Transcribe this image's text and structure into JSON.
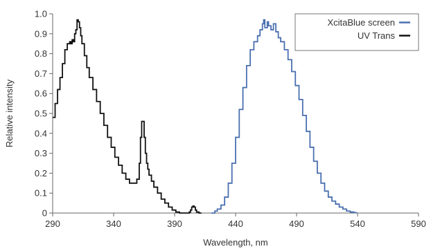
{
  "chart_data": {
    "type": "line",
    "xlabel": "Wavelength, nm",
    "ylabel": "Relative intensity",
    "xlim": [
      290,
      590
    ],
    "ylim": [
      0,
      1.0
    ],
    "xticks": [
      290,
      340,
      390,
      440,
      490,
      540,
      590
    ],
    "yticks": [
      0,
      0.1,
      0.2,
      0.3,
      0.4,
      0.5,
      0.6,
      0.7,
      0.8,
      0.9,
      1.0
    ],
    "ytick_labels": [
      "0",
      "0.1",
      "0.2",
      "0.3",
      "0.4",
      "0.5",
      "0.6",
      "0.7",
      "0.8",
      "0.9",
      "1.0"
    ],
    "grid": false,
    "legend": "top-right",
    "series": [
      {
        "name": "XcitaBlue screen",
        "color": "#4a6fb0",
        "x": [
          420,
          423,
          425,
          428,
          431,
          434,
          437,
          440,
          443,
          446,
          449,
          452,
          455,
          458,
          460,
          462,
          463,
          464,
          466,
          467,
          469,
          471,
          473,
          475,
          477,
          480,
          483,
          486,
          489,
          492,
          495,
          498,
          501,
          504,
          507,
          510,
          513,
          516,
          519,
          522,
          525,
          528,
          531,
          534,
          537,
          539
        ],
        "y": [
          0.0,
          0.01,
          0.02,
          0.04,
          0.08,
          0.15,
          0.25,
          0.38,
          0.52,
          0.63,
          0.74,
          0.82,
          0.86,
          0.89,
          0.92,
          0.95,
          0.97,
          0.93,
          0.96,
          0.94,
          0.92,
          0.95,
          0.91,
          0.88,
          0.86,
          0.82,
          0.77,
          0.71,
          0.64,
          0.57,
          0.49,
          0.41,
          0.33,
          0.26,
          0.2,
          0.15,
          0.11,
          0.08,
          0.06,
          0.045,
          0.03,
          0.02,
          0.01,
          0.005,
          0.002,
          0.0
        ]
      },
      {
        "name": "UV Trans",
        "color": "#111111",
        "x": [
          290,
          292,
          294,
          296,
          298,
          300,
          302,
          304,
          305,
          306,
          307,
          308,
          309,
          310,
          311,
          312,
          313,
          314,
          316,
          318,
          320,
          323,
          326,
          329,
          332,
          335,
          338,
          341,
          344,
          347,
          350,
          353,
          356,
          359,
          361,
          362,
          363,
          364,
          365,
          366,
          367,
          368,
          369,
          371,
          373,
          376,
          379,
          382,
          385,
          388,
          391,
          394,
          397,
          400,
          402,
          403,
          404,
          405,
          406,
          407,
          408,
          410,
          412
        ],
        "y": [
          0.48,
          0.55,
          0.62,
          0.68,
          0.75,
          0.82,
          0.85,
          0.86,
          0.85,
          0.87,
          0.86,
          0.9,
          0.92,
          0.97,
          0.96,
          0.93,
          0.89,
          0.85,
          0.79,
          0.73,
          0.68,
          0.62,
          0.56,
          0.5,
          0.44,
          0.38,
          0.33,
          0.28,
          0.24,
          0.2,
          0.17,
          0.15,
          0.15,
          0.17,
          0.25,
          0.38,
          0.46,
          0.46,
          0.38,
          0.3,
          0.25,
          0.22,
          0.19,
          0.16,
          0.13,
          0.1,
          0.07,
          0.05,
          0.03,
          0.015,
          0.005,
          0.0,
          0.0,
          0.0,
          0.005,
          0.015,
          0.03,
          0.035,
          0.03,
          0.015,
          0.005,
          0.0,
          0.0
        ]
      }
    ]
  }
}
